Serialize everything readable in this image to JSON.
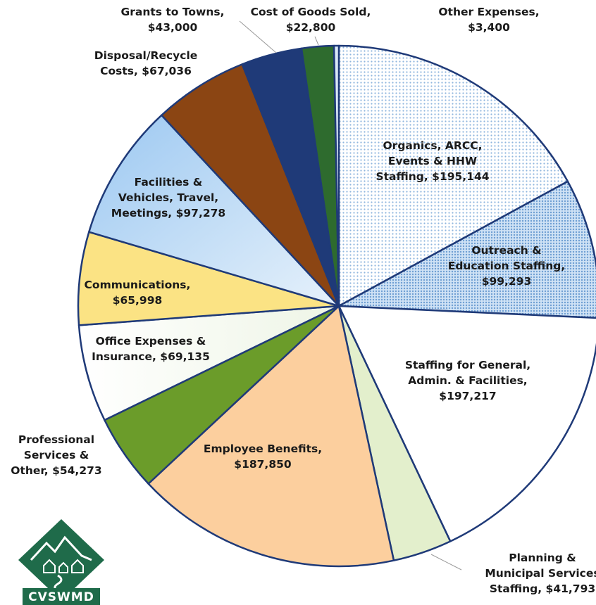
{
  "chart_data": {
    "type": "pie",
    "title": "",
    "slices": [
      {
        "label_lines": [
          "Organics, ARCC,",
          "Events & HHW",
          "Staffing, $195,144"
        ],
        "value": 195144,
        "color": "#bcd7f0"
      },
      {
        "label_lines": [
          "Outreach &",
          "Education Staffing,",
          "$99,293"
        ],
        "value": 99293,
        "color": "#a9cdec"
      },
      {
        "label_lines": [
          "Staffing for General,",
          "Admin. & Facilities,",
          "$197,217"
        ],
        "value": 197217,
        "color": "#ffffff"
      },
      {
        "label_lines": [
          "Planning &",
          "Municipal Services",
          "Staffing, $41,793"
        ],
        "value": 41793,
        "color": "#e3efcc"
      },
      {
        "label_lines": [
          "Employee Benefits,",
          "$187,850"
        ],
        "value": 187850,
        "color": "#fccf9e"
      },
      {
        "label_lines": [
          "Professional",
          "Services &",
          "Other, $54,273"
        ],
        "value": 54273,
        "color": "#6b9c2a"
      },
      {
        "label_lines": [
          "Office Expenses &",
          "Insurance, $69,135"
        ],
        "value": 69135,
        "color": "#f3f8ee"
      },
      {
        "label_lines": [
          "Communications,",
          "$65,998"
        ],
        "value": 65998,
        "color": "#fbe384"
      },
      {
        "label_lines": [
          "Facilities &",
          "Vehicles, Travel,",
          "Meetings, $97,278"
        ],
        "value": 97278,
        "color": "#b7d8f6"
      },
      {
        "label_lines": [
          "Disposal/Recycle",
          "Costs, $67,036"
        ],
        "value": 67036,
        "color": "#8b4513"
      },
      {
        "label_lines": [
          "Grants to Towns,",
          "$43,000"
        ],
        "value": 43000,
        "color": "#1f3a78"
      },
      {
        "label_lines": [
          "Cost of Goods Sold,",
          "$22,800"
        ],
        "value": 22800,
        "color": "#2e6b2e"
      },
      {
        "label_lines": [
          "Other Expenses,",
          "$3,400"
        ],
        "value": 3400,
        "color": "#dbeaf7"
      }
    ]
  },
  "logo": {
    "text": "CVSWMD",
    "color": "#1f6b4a"
  }
}
